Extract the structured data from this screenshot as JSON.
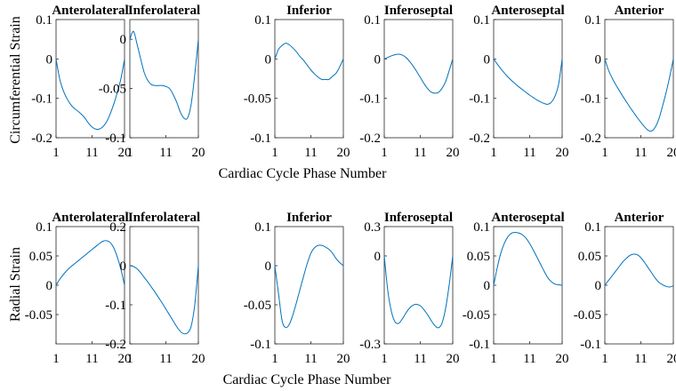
{
  "chart_data": [
    {
      "type": "line",
      "title": "Anterolateral",
      "ylabel": "Circumferential Strain",
      "xlabel": "Cardiac Cycle Phase Number",
      "x": [
        1,
        2,
        3,
        4,
        5,
        6,
        7,
        8,
        9,
        10,
        11,
        12,
        13,
        14,
        15,
        16,
        17,
        18,
        19,
        20
      ],
      "values": [
        0,
        -0.05,
        -0.08,
        -0.1,
        -0.115,
        -0.125,
        -0.132,
        -0.14,
        -0.15,
        -0.163,
        -0.173,
        -0.178,
        -0.178,
        -0.172,
        -0.16,
        -0.14,
        -0.115,
        -0.085,
        -0.05,
        0
      ],
      "xticks": [
        "1",
        "11",
        "20"
      ],
      "xlim": [
        1,
        20
      ],
      "yticks": [
        "0.1",
        "0",
        "-0.1",
        "-0.2"
      ],
      "yticks_values": [
        0.1,
        0,
        -0.1,
        -0.2
      ],
      "ylim": [
        -0.2,
        0.1
      ]
    },
    {
      "type": "line",
      "title": "Inferolateral",
      "x": [
        1,
        2,
        3,
        4,
        5,
        6,
        7,
        8,
        9,
        10,
        11,
        12,
        13,
        14,
        15,
        16,
        17,
        18,
        19,
        20
      ],
      "values": [
        0,
        0.008,
        -0.005,
        -0.02,
        -0.034,
        -0.042,
        -0.046,
        -0.047,
        -0.047,
        -0.047,
        -0.048,
        -0.05,
        -0.056,
        -0.064,
        -0.074,
        -0.08,
        -0.08,
        -0.066,
        -0.036,
        0
      ],
      "xticks": [
        "1",
        "11",
        "20"
      ],
      "xlim": [
        1,
        20
      ],
      "yticks": [
        "0",
        "-0.05",
        "-0.1"
      ],
      "yticks_values": [
        0,
        -0.05,
        -0.1
      ],
      "ylim": [
        -0.1,
        0.02
      ]
    },
    {
      "type": "line",
      "title": "Inferior",
      "x": [
        1,
        2,
        3,
        4,
        5,
        6,
        7,
        8,
        9,
        10,
        11,
        12,
        13,
        14,
        15,
        16,
        17,
        18,
        19,
        20
      ],
      "values": [
        0,
        0.012,
        0.017,
        0.02,
        0.018,
        0.014,
        0.009,
        0.003,
        -0.002,
        -0.008,
        -0.014,
        -0.019,
        -0.023,
        -0.026,
        -0.026,
        -0.026,
        -0.022,
        -0.018,
        -0.01,
        0
      ],
      "xticks": [
        "1",
        "11",
        "20"
      ],
      "xlim": [
        1,
        20
      ],
      "yticks": [
        "0.1",
        "0",
        "-0.05",
        "-0.1"
      ],
      "yticks_values": [
        0.1,
        0,
        -0.05,
        -0.1
      ],
      "ylim": [
        -0.1,
        0.05
      ]
    },
    {
      "type": "line",
      "title": "Inferoseptal",
      "x": [
        1,
        2,
        3,
        4,
        5,
        6,
        7,
        8,
        9,
        10,
        11,
        12,
        13,
        14,
        15,
        16,
        17,
        18,
        19,
        20
      ],
      "values": [
        0,
        0.004,
        0.008,
        0.011,
        0.012,
        0.01,
        0.004,
        -0.006,
        -0.018,
        -0.032,
        -0.047,
        -0.062,
        -0.075,
        -0.084,
        -0.087,
        -0.085,
        -0.075,
        -0.058,
        -0.03,
        0
      ],
      "xticks": [
        "1",
        "11",
        "20"
      ],
      "xlim": [
        1,
        20
      ],
      "yticks": [
        "0.1",
        "0",
        "-0.1",
        "-0.2"
      ],
      "yticks_values": [
        0.1,
        0,
        -0.1,
        -0.2
      ],
      "ylim": [
        -0.2,
        0.1
      ]
    },
    {
      "type": "line",
      "title": "Anteroseptal",
      "x": [
        1,
        2,
        3,
        4,
        5,
        6,
        7,
        8,
        9,
        10,
        11,
        12,
        13,
        14,
        15,
        16,
        17,
        18,
        19,
        20
      ],
      "values": [
        0,
        -0.013,
        -0.025,
        -0.036,
        -0.046,
        -0.055,
        -0.063,
        -0.071,
        -0.078,
        -0.085,
        -0.092,
        -0.098,
        -0.104,
        -0.109,
        -0.113,
        -0.115,
        -0.11,
        -0.095,
        -0.065,
        0
      ],
      "xticks": [
        "1",
        "11",
        "20"
      ],
      "xlim": [
        1,
        20
      ],
      "yticks": [
        "0.1",
        "0",
        "-0.1",
        "-0.2"
      ],
      "yticks_values": [
        0.1,
        0,
        -0.1,
        -0.2
      ],
      "ylim": [
        -0.2,
        0.1
      ]
    },
    {
      "type": "line",
      "title": "Anterior",
      "x": [
        1,
        2,
        3,
        4,
        5,
        6,
        7,
        8,
        9,
        10,
        11,
        12,
        13,
        14,
        15,
        16,
        17,
        18,
        19,
        20
      ],
      "values": [
        0,
        -0.028,
        -0.048,
        -0.065,
        -0.08,
        -0.095,
        -0.109,
        -0.123,
        -0.136,
        -0.149,
        -0.161,
        -0.172,
        -0.181,
        -0.183,
        -0.173,
        -0.152,
        -0.12,
        -0.085,
        -0.045,
        0
      ],
      "xticks": [
        "1",
        "11",
        "20"
      ],
      "xlim": [
        1,
        20
      ],
      "yticks": [
        "0.1",
        "0",
        "-0.1",
        "-0.2"
      ],
      "yticks_values": [
        0.1,
        0,
        -0.1,
        -0.2
      ],
      "ylim": [
        -0.2,
        0.1
      ]
    },
    {
      "type": "line",
      "title": "Anterolateral",
      "ylabel": "Radial Strain",
      "xlabel": "Cardiac Cycle Phase Number",
      "x": [
        1,
        2,
        3,
        4,
        5,
        6,
        7,
        8,
        9,
        10,
        11,
        12,
        13,
        14,
        15,
        16,
        17,
        18,
        19,
        20
      ],
      "values": [
        0,
        0.01,
        0.018,
        0.025,
        0.031,
        0.036,
        0.041,
        0.046,
        0.051,
        0.056,
        0.061,
        0.066,
        0.071,
        0.075,
        0.076,
        0.073,
        0.064,
        0.048,
        0.027,
        0
      ],
      "xticks": [
        "1",
        "11",
        "20"
      ],
      "xlim": [
        1,
        20
      ],
      "yticks": [
        "0.1",
        "0.05",
        "0",
        "-0.05"
      ],
      "yticks_values": [
        0.1,
        0.05,
        0,
        -0.05
      ],
      "ylim": [
        -0.1,
        0.1
      ]
    },
    {
      "type": "line",
      "title": "Inferolateral",
      "x": [
        1,
        2,
        3,
        4,
        5,
        6,
        7,
        8,
        9,
        10,
        11,
        12,
        13,
        14,
        15,
        16,
        17,
        18,
        19,
        20
      ],
      "values": [
        0,
        -0.002,
        -0.008,
        -0.018,
        -0.03,
        -0.042,
        -0.055,
        -0.068,
        -0.082,
        -0.096,
        -0.111,
        -0.126,
        -0.141,
        -0.156,
        -0.168,
        -0.174,
        -0.172,
        -0.155,
        -0.1,
        0
      ],
      "xticks": [
        "1",
        "11",
        "20"
      ],
      "xlim": [
        1,
        20
      ],
      "yticks": [
        "0.2",
        "0",
        "-0.1",
        "-0.2"
      ],
      "yticks_values": [
        0.2,
        0,
        -0.1,
        -0.2
      ],
      "ylim": [
        -0.2,
        0.1
      ]
    },
    {
      "type": "line",
      "title": "Inferior",
      "x": [
        1,
        2,
        3,
        4,
        5,
        6,
        7,
        8,
        9,
        10,
        11,
        12,
        13,
        14,
        15,
        16,
        17,
        18,
        19,
        20
      ],
      "values": [
        0,
        -0.035,
        -0.07,
        -0.079,
        -0.075,
        -0.063,
        -0.047,
        -0.03,
        -0.013,
        0.003,
        0.016,
        0.023,
        0.026,
        0.026,
        0.024,
        0.021,
        0.016,
        0.009,
        0.004,
        0
      ],
      "xticks": [
        "1",
        "11",
        "20"
      ],
      "xlim": [
        1,
        20
      ],
      "yticks": [
        "0.1",
        "0",
        "-0.05",
        "-0.1"
      ],
      "yticks_values": [
        0.1,
        0,
        -0.05,
        -0.1
      ],
      "ylim": [
        -0.1,
        0.05
      ]
    },
    {
      "type": "line",
      "title": "Inferoseptal",
      "x": [
        1,
        2,
        3,
        4,
        5,
        6,
        7,
        8,
        9,
        10,
        11,
        12,
        13,
        14,
        15,
        16,
        17,
        18,
        19,
        20
      ],
      "values": [
        0,
        -0.12,
        -0.19,
        -0.225,
        -0.23,
        -0.215,
        -0.195,
        -0.178,
        -0.168,
        -0.165,
        -0.17,
        -0.183,
        -0.2,
        -0.22,
        -0.237,
        -0.245,
        -0.23,
        -0.18,
        -0.1,
        0
      ],
      "xticks": [
        "1",
        "11",
        "20"
      ],
      "xlim": [
        1,
        20
      ],
      "yticks": [
        "0.3",
        "0",
        "-0.3"
      ],
      "yticks_values": [
        0.3,
        0,
        -0.3
      ],
      "ylim": [
        -0.3,
        0.1
      ]
    },
    {
      "type": "line",
      "title": "Anteroseptal",
      "x": [
        1,
        2,
        3,
        4,
        5,
        6,
        7,
        8,
        9,
        10,
        11,
        12,
        13,
        14,
        15,
        16,
        17,
        18,
        19,
        20
      ],
      "values": [
        0,
        0.03,
        0.055,
        0.072,
        0.083,
        0.089,
        0.09,
        0.089,
        0.086,
        0.08,
        0.071,
        0.06,
        0.048,
        0.036,
        0.024,
        0.013,
        0.006,
        0.002,
        0.001,
        0
      ],
      "xticks": [
        "1",
        "11",
        "20"
      ],
      "xlim": [
        1,
        20
      ],
      "yticks": [
        "0.1",
        "0.05",
        "0",
        "-0.05",
        "-0.1"
      ],
      "yticks_values": [
        0.1,
        0.05,
        0,
        -0.05,
        -0.1
      ],
      "ylim": [
        -0.1,
        0.1
      ]
    },
    {
      "type": "line",
      "title": "Anterior",
      "x": [
        1,
        2,
        3,
        4,
        5,
        6,
        7,
        8,
        9,
        10,
        11,
        12,
        13,
        14,
        15,
        16,
        17,
        18,
        19,
        20
      ],
      "values": [
        0,
        0.008,
        0.016,
        0.024,
        0.032,
        0.04,
        0.046,
        0.051,
        0.053,
        0.052,
        0.047,
        0.039,
        0.03,
        0.021,
        0.012,
        0.005,
        0.001,
        -0.002,
        -0.003,
        -0.001
      ],
      "xticks": [
        "1",
        "11",
        "20"
      ],
      "xlim": [
        1,
        20
      ],
      "yticks": [
        "0.1",
        "0.05",
        "0",
        "-0.05",
        "-0.1"
      ],
      "yticks_values": [
        0.1,
        0.05,
        0,
        -0.05,
        -0.1
      ],
      "ylim": [
        -0.1,
        0.1
      ]
    }
  ],
  "figure": {
    "row_ylabels": [
      "Circumferential Strain",
      "Radial Strain"
    ],
    "xlabel": "Cardiac Cycle Phase Number",
    "line_color": "#0072BD"
  }
}
